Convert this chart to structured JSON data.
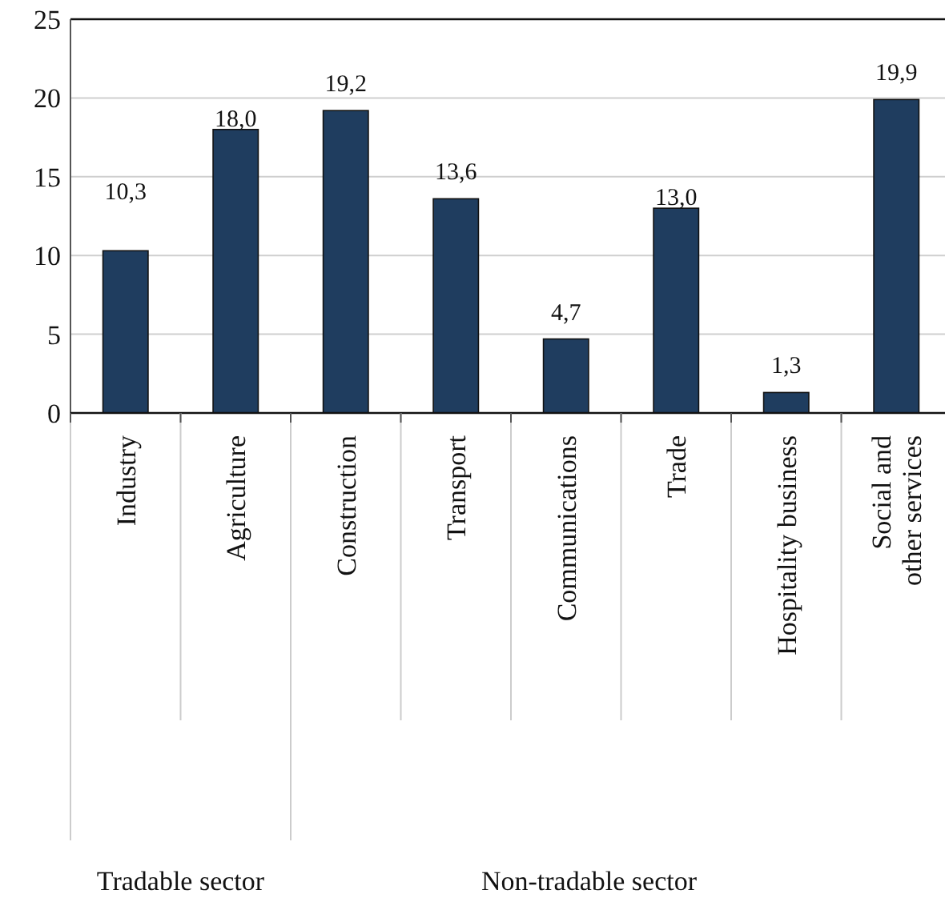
{
  "chart_data": {
    "type": "bar",
    "categories": [
      "Industry",
      "Agriculture",
      "Construction",
      "Transport",
      "Communications",
      "Trade",
      "Hospitality business",
      "Social and other services"
    ],
    "values": [
      10.3,
      18.0,
      19.2,
      13.6,
      4.7,
      13.0,
      1.3,
      19.9
    ],
    "value_labels": [
      "10,3",
      "18,0",
      "19,2",
      "13,6",
      "4,7",
      "13,0",
      "1,3",
      "19,9"
    ],
    "color": "#1f3d5f",
    "ylim": [
      0,
      25
    ],
    "yticks": [
      0,
      5,
      10,
      15,
      20,
      25
    ],
    "grid": "y",
    "annotations": [
      "Tradable sector",
      "Non-tradable sector"
    ]
  }
}
